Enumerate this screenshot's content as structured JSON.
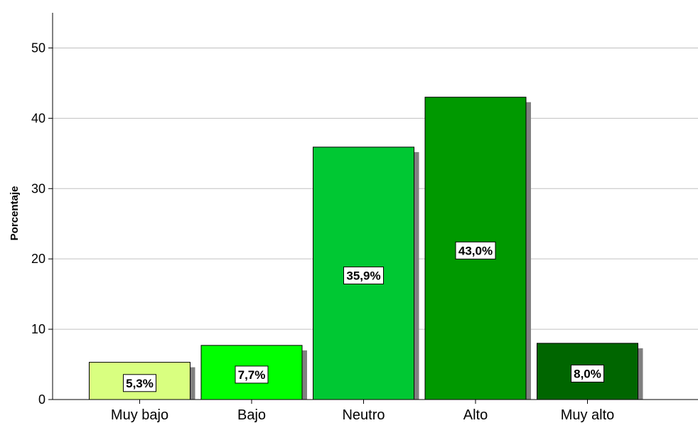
{
  "chart_data": {
    "type": "bar",
    "title": "",
    "xlabel": "",
    "ylabel": "Porcentaje",
    "categories": [
      "Muy bajo",
      "Bajo",
      "Neutro",
      "Alto",
      "Muy alto"
    ],
    "values": [
      5.3,
      7.7,
      35.9,
      43.0,
      8.0
    ],
    "data_labels": [
      "5,3%",
      "7,7%",
      "35,9%",
      "43,0%",
      "8,0%"
    ],
    "bar_colors": [
      "#d9ff80",
      "#00ff00",
      "#00c833",
      "#009900",
      "#006600"
    ],
    "ylim": [
      0,
      55
    ],
    "yticks": [
      0,
      10,
      20,
      30,
      40,
      50
    ],
    "ytick_labels": [
      "0",
      "10",
      "20",
      "30",
      "40",
      "50"
    ],
    "grid": true,
    "shadow_color": "#808080",
    "grid_color": "#c0c0c0"
  }
}
